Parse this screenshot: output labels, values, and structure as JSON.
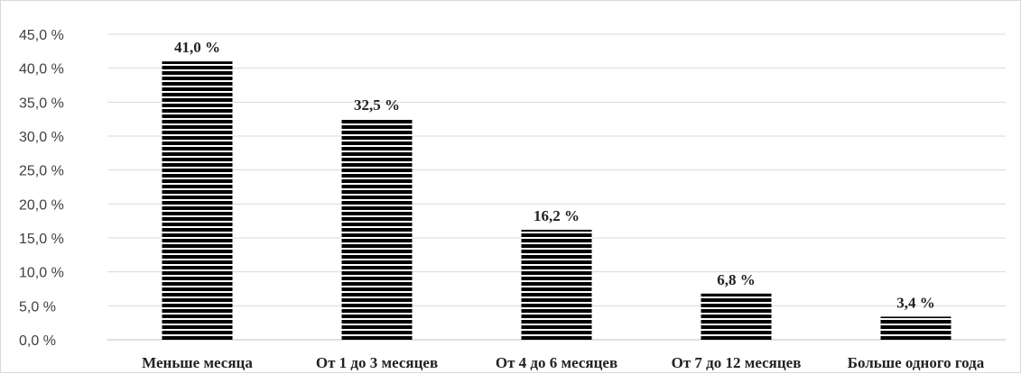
{
  "chart_data": {
    "type": "bar",
    "title": "",
    "xlabel": "",
    "ylabel": "",
    "categories": [
      "Меньше месяца",
      "От 1 до 3 месяцев",
      "От 4 до 6 месяцев",
      "От 7 до 12 месяцев",
      "Больше одного года"
    ],
    "values": [
      41.0,
      32.5,
      16.2,
      6.8,
      3.4
    ],
    "data_labels": [
      "41,0 %",
      "32,5 %",
      "16,2 %",
      "6,8 %",
      "3,4 %"
    ],
    "ylim": [
      0,
      45
    ],
    "y_ticks": [
      0,
      5,
      10,
      15,
      20,
      25,
      30,
      35,
      40,
      45
    ],
    "y_tick_labels": [
      "0,0 %",
      "5,0 %",
      "10,0 %",
      "15,0 %",
      "20,0 %",
      "25,0 %",
      "30,0 %",
      "35,0 %",
      "40,0 %",
      "45,0 %"
    ],
    "grid": true,
    "legend": "none",
    "bar_fill": "horizontal-stripes",
    "bar_color": "#000000",
    "grid_color": "#d9d9d9"
  }
}
